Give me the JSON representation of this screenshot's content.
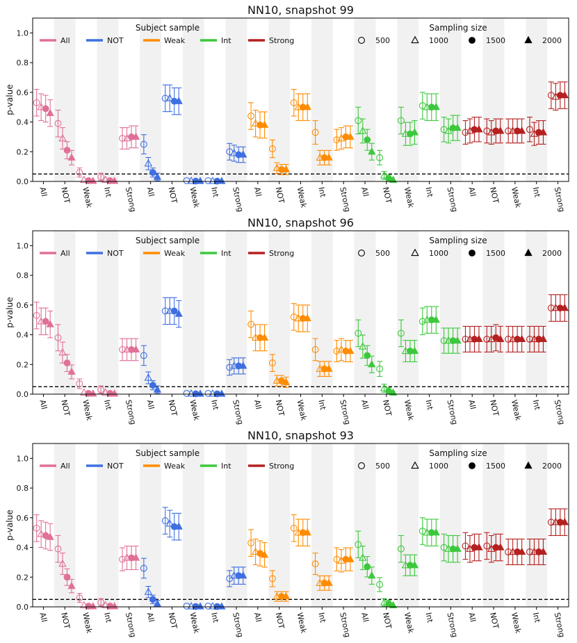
{
  "legend": {
    "subject_title": "Subject sample",
    "size_title": "Sampling size",
    "subjects": [
      {
        "label": "All",
        "color": "#e07098"
      },
      {
        "label": "NOT",
        "color": "#3f6fe0"
      },
      {
        "label": "Weak",
        "color": "#ff8c00"
      },
      {
        "label": "Int",
        "color": "#3cc83c"
      },
      {
        "label": "Strong",
        "color": "#b52020"
      }
    ],
    "sizes": [
      {
        "label": "500",
        "marker": "circle-open"
      },
      {
        "label": "1000",
        "marker": "triangle-open"
      },
      {
        "label": "1500",
        "marker": "circle-filled"
      },
      {
        "label": "2000",
        "marker": "triangle-filled"
      }
    ]
  },
  "chart_data": [
    {
      "type": "scatter",
      "title": "NN10, snapshot 99",
      "ylabel": "p-value",
      "ylim": [
        0,
        1.1
      ],
      "yticks": [
        "0.0",
        "0.2",
        "0.4",
        "0.6",
        "0.8",
        "1.0"
      ],
      "threshold": 0.05,
      "categories": [
        "All",
        "NOT",
        "Weak",
        "Int",
        "Strong",
        "All",
        "NOT",
        "Weak",
        "Int",
        "Strong",
        "All",
        "NOT",
        "Weak",
        "Int",
        "Strong",
        "All",
        "NOT",
        "Weak",
        "Int",
        "Strong",
        "All",
        "NOT",
        "Weak",
        "Int",
        "Strong"
      ],
      "series": [
        {
          "name": "All",
          "values": [
            [
              0.53,
              0.5,
              0.49,
              0.46
            ],
            [
              0.39,
              0.29,
              0.21,
              0.16
            ],
            [
              0.06,
              0.01,
              0.005,
              0.003
            ],
            [
              0.03,
              0.01,
              0.005,
              0.003
            ],
            [
              0.29,
              0.29,
              0.3,
              0.3
            ]
          ]
        },
        {
          "name": "NOT",
          "values": [
            [
              0.25,
              0.12,
              0.06,
              0.03
            ],
            [
              0.56,
              0.56,
              0.54,
              0.54
            ],
            [
              0.005,
              0.003,
              0.002,
              0.002
            ],
            [
              0.005,
              0.003,
              0.002,
              0.002
            ],
            [
              0.2,
              0.19,
              0.18,
              0.18
            ]
          ]
        },
        {
          "name": "Weak",
          "values": [
            [
              0.44,
              0.39,
              0.38,
              0.38
            ],
            [
              0.22,
              0.09,
              0.08,
              0.08
            ],
            [
              0.53,
              0.5,
              0.5,
              0.5
            ],
            [
              0.33,
              0.16,
              0.16,
              0.16
            ],
            [
              0.28,
              0.29,
              0.3,
              0.3
            ]
          ]
        },
        {
          "name": "Int",
          "values": [
            [
              0.41,
              0.34,
              0.28,
              0.2
            ],
            [
              0.16,
              0.04,
              0.02,
              0.01
            ],
            [
              0.41,
              0.32,
              0.32,
              0.33
            ],
            [
              0.51,
              0.5,
              0.5,
              0.5
            ],
            [
              0.35,
              0.34,
              0.36,
              0.36
            ]
          ]
        },
        {
          "name": "Strong",
          "values": [
            [
              0.33,
              0.34,
              0.35,
              0.35
            ],
            [
              0.34,
              0.33,
              0.34,
              0.34
            ],
            [
              0.34,
              0.34,
              0.34,
              0.34
            ],
            [
              0.35,
              0.32,
              0.33,
              0.33
            ],
            [
              0.58,
              0.57,
              0.58,
              0.58
            ]
          ]
        }
      ]
    },
    {
      "type": "scatter",
      "title": "NN10, snapshot 96",
      "ylabel": "p-value",
      "ylim": [
        0,
        1.1
      ],
      "yticks": [
        "0.0",
        "0.2",
        "0.4",
        "0.6",
        "0.8",
        "1.0"
      ],
      "threshold": 0.05,
      "categories": [
        "All",
        "NOT",
        "Weak",
        "Int",
        "Strong",
        "All",
        "NOT",
        "Weak",
        "Int",
        "Strong",
        "All",
        "NOT",
        "Weak",
        "Int",
        "Strong",
        "All",
        "NOT",
        "Weak",
        "Int",
        "Strong",
        "All",
        "NOT",
        "Weak",
        "Int",
        "Strong"
      ],
      "series": [
        {
          "name": "All",
          "values": [
            [
              0.53,
              0.49,
              0.49,
              0.47
            ],
            [
              0.38,
              0.28,
              0.21,
              0.15
            ],
            [
              0.07,
              0.01,
              0.005,
              0.003
            ],
            [
              0.03,
              0.01,
              0.005,
              0.003
            ],
            [
              0.3,
              0.3,
              0.3,
              0.3
            ]
          ]
        },
        {
          "name": "NOT",
          "values": [
            [
              0.26,
              0.11,
              0.06,
              0.03
            ],
            [
              0.56,
              0.56,
              0.56,
              0.54
            ],
            [
              0.005,
              0.003,
              0.002,
              0.002
            ],
            [
              0.005,
              0.003,
              0.002,
              0.002
            ],
            [
              0.18,
              0.19,
              0.19,
              0.19
            ]
          ]
        },
        {
          "name": "Weak",
          "values": [
            [
              0.47,
              0.38,
              0.38,
              0.38
            ],
            [
              0.21,
              0.09,
              0.09,
              0.08
            ],
            [
              0.52,
              0.51,
              0.51,
              0.51
            ],
            [
              0.3,
              0.17,
              0.17,
              0.17
            ],
            [
              0.29,
              0.3,
              0.29,
              0.29
            ]
          ]
        },
        {
          "name": "Int",
          "values": [
            [
              0.41,
              0.32,
              0.26,
              0.2
            ],
            [
              0.17,
              0.04,
              0.02,
              0.01
            ],
            [
              0.41,
              0.29,
              0.29,
              0.29
            ],
            [
              0.49,
              0.5,
              0.5,
              0.5
            ],
            [
              0.36,
              0.36,
              0.36,
              0.36
            ]
          ]
        },
        {
          "name": "Strong",
          "values": [
            [
              0.37,
              0.37,
              0.37,
              0.37
            ],
            [
              0.37,
              0.37,
              0.38,
              0.37
            ],
            [
              0.37,
              0.37,
              0.37,
              0.37
            ],
            [
              0.37,
              0.37,
              0.37,
              0.37
            ],
            [
              0.58,
              0.58,
              0.58,
              0.58
            ]
          ]
        }
      ]
    },
    {
      "type": "scatter",
      "title": "NN10, snapshot 93",
      "ylabel": "p-value",
      "ylim": [
        0,
        1.1
      ],
      "yticks": [
        "0.0",
        "0.2",
        "0.4",
        "0.6",
        "0.8",
        "1.0"
      ],
      "threshold": 0.05,
      "categories": [
        "All",
        "NOT",
        "Weak",
        "Int",
        "Strong",
        "All",
        "NOT",
        "Weak",
        "Int",
        "Strong",
        "All",
        "NOT",
        "Weak",
        "Int",
        "Strong",
        "All",
        "NOT",
        "Weak",
        "Int",
        "Strong",
        "All",
        "NOT",
        "Weak",
        "Int",
        "Strong"
      ],
      "series": [
        {
          "name": "All",
          "values": [
            [
              0.53,
              0.49,
              0.48,
              0.47
            ],
            [
              0.39,
              0.29,
              0.2,
              0.14
            ],
            [
              0.06,
              0.01,
              0.005,
              0.003
            ],
            [
              0.03,
              0.01,
              0.005,
              0.003
            ],
            [
              0.32,
              0.33,
              0.33,
              0.33
            ]
          ]
        },
        {
          "name": "NOT",
          "values": [
            [
              0.26,
              0.1,
              0.05,
              0.02
            ],
            [
              0.58,
              0.56,
              0.54,
              0.54
            ],
            [
              0.005,
              0.003,
              0.002,
              0.002
            ],
            [
              0.005,
              0.003,
              0.002,
              0.002
            ],
            [
              0.19,
              0.21,
              0.21,
              0.21
            ]
          ]
        },
        {
          "name": "Weak",
          "values": [
            [
              0.43,
              0.37,
              0.36,
              0.35
            ],
            [
              0.19,
              0.07,
              0.07,
              0.07
            ],
            [
              0.53,
              0.5,
              0.5,
              0.5
            ],
            [
              0.29,
              0.16,
              0.16,
              0.16
            ],
            [
              0.32,
              0.31,
              0.32,
              0.32
            ]
          ]
        },
        {
          "name": "Int",
          "values": [
            [
              0.42,
              0.33,
              0.27,
              0.21
            ],
            [
              0.15,
              0.03,
              0.02,
              0.01
            ],
            [
              0.39,
              0.28,
              0.28,
              0.28
            ],
            [
              0.51,
              0.5,
              0.5,
              0.5
            ],
            [
              0.4,
              0.39,
              0.39,
              0.39
            ]
          ]
        },
        {
          "name": "Strong",
          "values": [
            [
              0.41,
              0.39,
              0.4,
              0.4
            ],
            [
              0.41,
              0.39,
              0.4,
              0.4
            ],
            [
              0.37,
              0.37,
              0.37,
              0.37
            ],
            [
              0.37,
              0.37,
              0.37,
              0.37
            ],
            [
              0.57,
              0.57,
              0.57,
              0.57
            ]
          ]
        }
      ]
    }
  ]
}
